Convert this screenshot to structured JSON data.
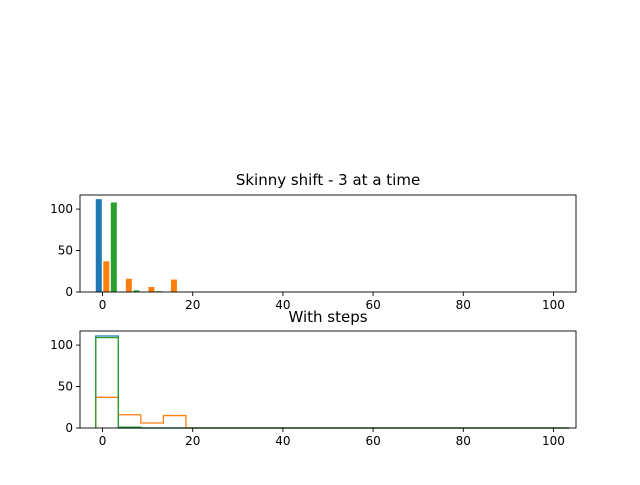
{
  "chart_data": [
    {
      "type": "bar",
      "title": "Skinny shift - 3 at a time",
      "xlabel": "",
      "ylabel": "",
      "xlim": [
        -5,
        105
      ],
      "ylim": [
        0,
        117
      ],
      "xticks": [
        0,
        20,
        40,
        60,
        80,
        100
      ],
      "yticks": [
        0,
        50,
        100
      ],
      "grid": false,
      "bin_edges": [
        -1.5,
        3.5,
        8.5,
        13.5,
        18.5,
        23.5,
        28.5,
        33.5,
        38.5,
        43.5,
        48.5,
        53.5,
        58.5,
        63.5,
        68.5,
        73.5,
        78.5,
        83.5,
        88.5,
        93.5,
        98.5,
        103.5
      ],
      "series": [
        {
          "color": "#1f77b4",
          "values": [
            112,
            0,
            0,
            0,
            0,
            0,
            0,
            0,
            0,
            0,
            0,
            0,
            0,
            0,
            0,
            0,
            0,
            0,
            0,
            0,
            0
          ]
        },
        {
          "color": "#ff7f0e",
          "values": [
            37,
            16,
            6,
            15,
            0,
            0,
            0,
            0,
            0,
            0,
            0,
            0,
            0,
            0,
            0,
            0,
            0,
            0,
            0,
            0,
            0
          ]
        },
        {
          "color": "#2ca02c",
          "values": [
            108,
            2,
            1,
            0,
            0,
            0,
            0,
            0,
            0,
            0,
            0,
            0,
            0,
            0,
            0,
            0,
            0,
            0,
            0,
            0,
            0
          ]
        }
      ]
    },
    {
      "type": "step",
      "title": "With steps",
      "xlabel": "",
      "ylabel": "",
      "xlim": [
        -5,
        105
      ],
      "ylim": [
        0,
        117
      ],
      "xticks": [
        0,
        20,
        40,
        60,
        80,
        100
      ],
      "yticks": [
        0,
        50,
        100
      ],
      "grid": false,
      "bin_edges": [
        -1.5,
        3.5,
        8.5,
        13.5,
        18.5,
        23.5,
        28.5,
        33.5,
        38.5,
        43.5,
        48.5,
        53.5,
        58.5,
        63.5,
        68.5,
        73.5,
        78.5,
        83.5,
        88.5,
        93.5,
        98.5,
        103.5
      ],
      "series": [
        {
          "color": "#1f77b4",
          "values": [
            111,
            0,
            0,
            0,
            0,
            0,
            0,
            0,
            0,
            0,
            0,
            0,
            0,
            0,
            0,
            0,
            0,
            0,
            0,
            0,
            0
          ]
        },
        {
          "color": "#ff7f0e",
          "values": [
            37,
            16,
            6,
            15,
            0,
            0,
            0,
            0,
            0,
            0,
            0,
            0,
            0,
            0,
            0,
            0,
            0,
            0,
            0,
            0,
            0
          ]
        },
        {
          "color": "#2ca02c",
          "values": [
            109,
            1,
            0,
            0,
            0,
            0,
            0,
            0,
            0,
            0,
            0,
            0,
            0,
            0,
            0,
            0,
            0,
            0,
            0,
            0,
            0
          ]
        }
      ]
    }
  ]
}
